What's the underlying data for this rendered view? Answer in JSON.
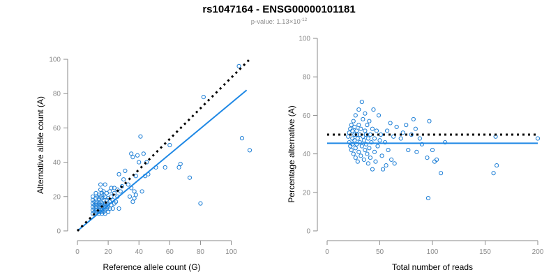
{
  "title": "rs1047164 - ENSG00000101181",
  "subtitle": {
    "prefix": "p-value: 1.13×10",
    "exponent": "-12"
  },
  "colors": {
    "points": "#1e7fd6",
    "fit_line": "#1e88e5",
    "reference_line": "#000000",
    "axis": "#8a8a8a"
  },
  "chart_data": [
    {
      "type": "scatter",
      "xlabel": "Reference allele count (G)",
      "ylabel": "Alternative allele count (A)",
      "xlim": [
        0,
        112
      ],
      "ylim": [
        0,
        100
      ],
      "x_ticks": [
        0,
        20,
        40,
        60,
        80,
        100
      ],
      "y_ticks": [
        0,
        20,
        40,
        60,
        80,
        100
      ],
      "grid": false,
      "reference_line": {
        "style": "dotted",
        "x": [
          0,
          112
        ],
        "y": [
          0,
          100
        ]
      },
      "fit_line": {
        "style": "solid",
        "x": [
          0,
          110
        ],
        "y": [
          0,
          82
        ]
      },
      "points": [
        [
          10,
          10
        ],
        [
          10,
          12
        ],
        [
          10,
          14
        ],
        [
          10,
          16
        ],
        [
          10,
          18
        ],
        [
          10,
          20
        ],
        [
          11,
          11
        ],
        [
          11,
          13
        ],
        [
          11,
          15
        ],
        [
          11,
          17
        ],
        [
          12,
          10
        ],
        [
          12,
          12
        ],
        [
          12,
          14
        ],
        [
          12,
          16
        ],
        [
          12,
          19
        ],
        [
          12,
          22
        ],
        [
          13,
          11
        ],
        [
          13,
          13
        ],
        [
          13,
          15
        ],
        [
          13,
          17
        ],
        [
          13,
          20
        ],
        [
          14,
          10
        ],
        [
          14,
          12
        ],
        [
          14,
          14
        ],
        [
          14,
          16
        ],
        [
          14,
          18
        ],
        [
          14,
          21
        ],
        [
          15,
          11
        ],
        [
          15,
          13
        ],
        [
          15,
          15
        ],
        [
          15,
          17
        ],
        [
          15,
          20
        ],
        [
          15,
          24
        ],
        [
          15,
          27
        ],
        [
          16,
          10
        ],
        [
          16,
          12
        ],
        [
          16,
          14
        ],
        [
          16,
          16
        ],
        [
          16,
          19
        ],
        [
          16,
          22
        ],
        [
          17,
          11
        ],
        [
          17,
          13
        ],
        [
          17,
          15
        ],
        [
          17,
          18
        ],
        [
          17,
          21
        ],
        [
          17,
          23
        ],
        [
          18,
          10
        ],
        [
          18,
          12
        ],
        [
          18,
          14
        ],
        [
          18,
          16
        ],
        [
          18,
          20
        ],
        [
          18,
          27
        ],
        [
          19,
          13
        ],
        [
          19,
          15
        ],
        [
          19,
          18
        ],
        [
          19,
          22
        ],
        [
          20,
          11
        ],
        [
          20,
          14
        ],
        [
          20,
          16
        ],
        [
          20,
          19
        ],
        [
          21,
          13
        ],
        [
          21,
          17
        ],
        [
          21,
          23
        ],
        [
          22,
          15
        ],
        [
          22,
          20
        ],
        [
          22,
          25
        ],
        [
          23,
          13
        ],
        [
          23,
          18
        ],
        [
          24,
          16
        ],
        [
          24,
          22
        ],
        [
          24,
          25
        ],
        [
          25,
          17
        ],
        [
          26,
          20
        ],
        [
          26,
          24
        ],
        [
          27,
          13
        ],
        [
          27,
          33
        ],
        [
          28,
          23
        ],
        [
          29,
          26
        ],
        [
          30,
          30
        ],
        [
          31,
          35
        ],
        [
          33,
          27
        ],
        [
          34,
          20
        ],
        [
          35,
          25
        ],
        [
          35,
          45
        ],
        [
          36,
          17
        ],
        [
          36,
          43
        ],
        [
          37,
          19
        ],
        [
          37,
          23
        ],
        [
          38,
          21
        ],
        [
          38,
          32
        ],
        [
          39,
          44
        ],
        [
          40,
          40
        ],
        [
          41,
          55
        ],
        [
          42,
          23
        ],
        [
          43,
          45
        ],
        [
          44,
          32
        ],
        [
          45,
          40
        ],
        [
          46,
          33
        ],
        [
          51,
          37
        ],
        [
          57,
          37
        ],
        [
          60,
          50
        ],
        [
          66,
          37
        ],
        [
          67,
          39
        ],
        [
          73,
          31
        ],
        [
          80,
          16
        ],
        [
          82,
          78
        ],
        [
          105,
          96
        ],
        [
          107,
          54
        ],
        [
          112,
          47
        ]
      ]
    },
    {
      "type": "scatter",
      "xlabel": "Total number of reads",
      "ylabel": "Percentage alternative (A)",
      "xlim": [
        0,
        200
      ],
      "ylim": [
        0,
        100
      ],
      "x_ticks": [
        0,
        50,
        100,
        150,
        200
      ],
      "y_ticks": [
        0,
        20,
        40,
        60,
        80,
        100
      ],
      "grid": false,
      "reference_line": {
        "style": "dotted",
        "x": [
          0,
          200
        ],
        "y": [
          50,
          50
        ]
      },
      "fit_line": {
        "style": "solid",
        "x": [
          0,
          200
        ],
        "y": [
          45.5,
          45.5
        ]
      },
      "points": [
        [
          20,
          49
        ],
        [
          21,
          51
        ],
        [
          21,
          46
        ],
        [
          22,
          53
        ],
        [
          22,
          44
        ],
        [
          23,
          55
        ],
        [
          23,
          42
        ],
        [
          24,
          48
        ],
        [
          24,
          52
        ],
        [
          24,
          45
        ],
        [
          25,
          57
        ],
        [
          25,
          40
        ],
        [
          26,
          50
        ],
        [
          26,
          47
        ],
        [
          26,
          54
        ],
        [
          27,
          43
        ],
        [
          27,
          38
        ],
        [
          27,
          60
        ],
        [
          28,
          50
        ],
        [
          28,
          45
        ],
        [
          28,
          52
        ],
        [
          29,
          36
        ],
        [
          29,
          48
        ],
        [
          30,
          63
        ],
        [
          30,
          41
        ],
        [
          30,
          55
        ],
        [
          31,
          46
        ],
        [
          31,
          50
        ],
        [
          32,
          39
        ],
        [
          32,
          53
        ],
        [
          33,
          67
        ],
        [
          33,
          44
        ],
        [
          34,
          49
        ],
        [
          34,
          58
        ],
        [
          35,
          37
        ],
        [
          35,
          47
        ],
        [
          36,
          52
        ],
        [
          36,
          42
        ],
        [
          36,
          61
        ],
        [
          37,
          45
        ],
        [
          37,
          50
        ],
        [
          38,
          40
        ],
        [
          38,
          55
        ],
        [
          39,
          48
        ],
        [
          39,
          35
        ],
        [
          40,
          43
        ],
        [
          40,
          57
        ],
        [
          41,
          50
        ],
        [
          41,
          38
        ],
        [
          42,
          46
        ],
        [
          43,
          32
        ],
        [
          43,
          53
        ],
        [
          44,
          63
        ],
        [
          45,
          41
        ],
        [
          45,
          48
        ],
        [
          46,
          36
        ],
        [
          47,
          52
        ],
        [
          48,
          44
        ],
        [
          49,
          60
        ],
        [
          50,
          47
        ],
        [
          51,
          50
        ],
        [
          52,
          39
        ],
        [
          53,
          32
        ],
        [
          55,
          46
        ],
        [
          56,
          34
        ],
        [
          57,
          52
        ],
        [
          58,
          42
        ],
        [
          60,
          56
        ],
        [
          61,
          37
        ],
        [
          63,
          49
        ],
        [
          64,
          35
        ],
        [
          66,
          54
        ],
        [
          70,
          48
        ],
        [
          72,
          51
        ],
        [
          75,
          55
        ],
        [
          77,
          42
        ],
        [
          80,
          50
        ],
        [
          82,
          58
        ],
        [
          84,
          53
        ],
        [
          85,
          41
        ],
        [
          88,
          48
        ],
        [
          90,
          45
        ],
        [
          95,
          38
        ],
        [
          96,
          17
        ],
        [
          97,
          57
        ],
        [
          100,
          42
        ],
        [
          102,
          36
        ],
        [
          104,
          37
        ],
        [
          108,
          30
        ],
        [
          112,
          46
        ],
        [
          158,
          30
        ],
        [
          160,
          49
        ],
        [
          161,
          34
        ],
        [
          200,
          48
        ]
      ]
    }
  ]
}
